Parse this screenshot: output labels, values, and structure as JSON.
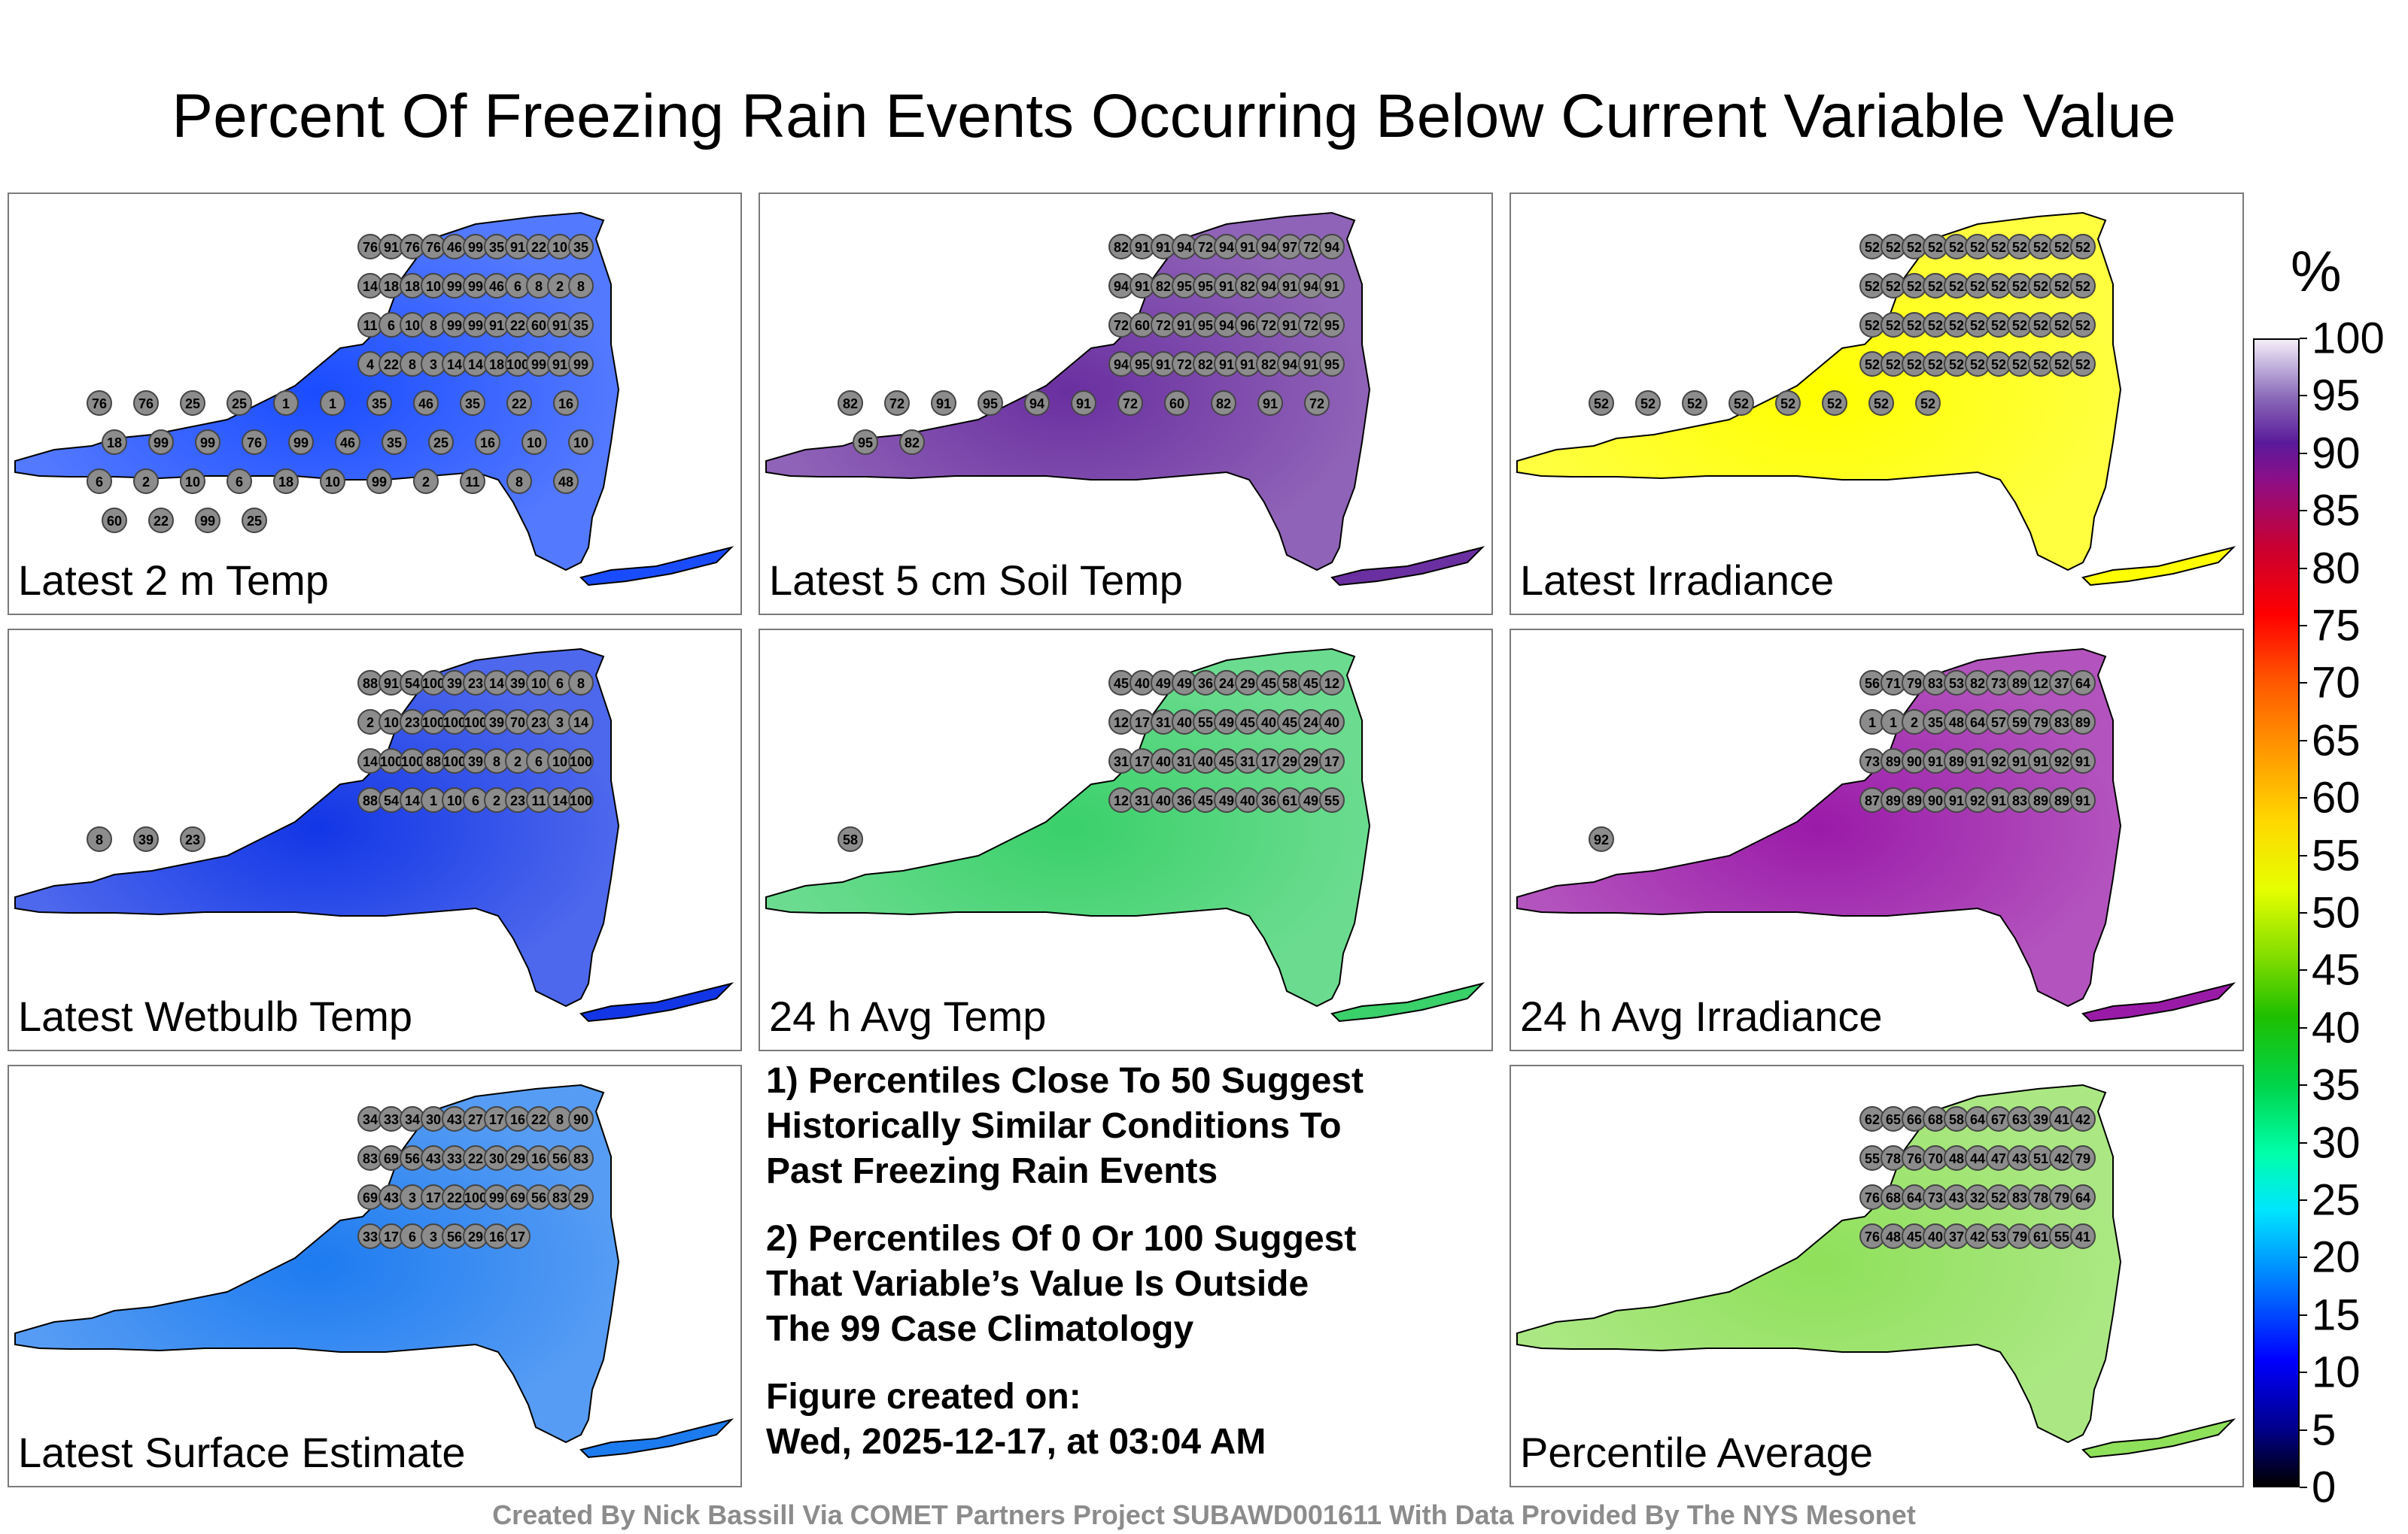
{
  "title": "Percent Of Freezing Rain Events Occurring Below Current Variable Value",
  "colorbar": {
    "unit": "%",
    "ticks": [
      "100",
      "95",
      "90",
      "85",
      "80",
      "75",
      "70",
      "65",
      "60",
      "55",
      "50",
      "45",
      "40",
      "35",
      "30",
      "25",
      "20",
      "15",
      "10",
      "5",
      "0"
    ]
  },
  "panels": [
    {
      "label": "Latest 2 m Temp",
      "tone": "#1a4cff"
    },
    {
      "label": "Latest 5 cm Soil Temp",
      "tone": "#6a2fa0"
    },
    {
      "label": "Latest Irradiance",
      "tone": "#ffff00"
    },
    {
      "label": "Latest Wetbulb Temp",
      "tone": "#1236e6"
    },
    {
      "label": "24 h Avg Temp",
      "tone": "#3ad06a"
    },
    {
      "label": "24 h Avg Irradiance",
      "tone": "#9a1aa8"
    },
    {
      "label": "Latest Surface Estimate",
      "tone": "#1d7bf0"
    },
    {
      "label": "Percentile Average",
      "tone": "#8fe05a"
    }
  ],
  "notes": {
    "note1": "1) Percentiles Close To 50 Suggest\nHistorically Similar Conditions To\nPast Freezing Rain Events",
    "note2": "2) Percentiles Of 0 Or 100 Suggest\nThat Variable’s Value Is Outside\nThe 99 Case Climatology",
    "created_label": "Figure created on:",
    "created_date": "Wed, 2025-12-17, at 03:04 AM"
  },
  "footer": "Created By Nick Bassill Via COMET Partners Project SUBAWD001611 With Data Provided By The NYS Mesonet",
  "chart_data": {
    "type": "map-panels",
    "title": "Percent Of Freezing Rain Events Occurring Below Current Variable Value",
    "colorbar_range": [
      0,
      100
    ],
    "colorbar_unit": "%",
    "panels": [
      {
        "name": "Latest 2 m Temp",
        "station_values": [
          76,
          91,
          76,
          76,
          46,
          99,
          35,
          91,
          22,
          10,
          35,
          14,
          18,
          18,
          10,
          99,
          99,
          46,
          6,
          8,
          2,
          8,
          11,
          6,
          10,
          8,
          99,
          99,
          91,
          22,
          60,
          91,
          35,
          4,
          22,
          8,
          3,
          14,
          14,
          18,
          100,
          99,
          91,
          99,
          76,
          76,
          25,
          25,
          1,
          1,
          35,
          46,
          35,
          22,
          16,
          18,
          99,
          99,
          76,
          99,
          46,
          35,
          25,
          16,
          10,
          10,
          6,
          2,
          10,
          6,
          18,
          10,
          99,
          2,
          11,
          8,
          48,
          60,
          22,
          99,
          25
        ]
      },
      {
        "name": "Latest 5 cm Soil Temp",
        "station_values": [
          82,
          91,
          91,
          94,
          72,
          94,
          91,
          94,
          97,
          72,
          94,
          94,
          91,
          82,
          95,
          95,
          91,
          82,
          94,
          91,
          94,
          91,
          72,
          60,
          72,
          91,
          95,
          94,
          96,
          72,
          91,
          72,
          95,
          94,
          95,
          91,
          72,
          82,
          91,
          91,
          82,
          94,
          91,
          95,
          82,
          72,
          91,
          95,
          94,
          91,
          72,
          60,
          82,
          91,
          72,
          95,
          82
        ]
      },
      {
        "name": "Latest Irradiance",
        "station_values": [
          52,
          52,
          52,
          52,
          52,
          52,
          52,
          52,
          52,
          52,
          52,
          52,
          52,
          52,
          52,
          52,
          52,
          52,
          52,
          52,
          52,
          52,
          52,
          52,
          52,
          52,
          52,
          52,
          52,
          52,
          52,
          52,
          52,
          52,
          52,
          52,
          52,
          52,
          52,
          52,
          52,
          52,
          52,
          52,
          52,
          52,
          52,
          52,
          52,
          52,
          52,
          52
        ]
      },
      {
        "name": "Latest Wetbulb Temp",
        "station_values": [
          88,
          91,
          54,
          100,
          39,
          23,
          14,
          39,
          10,
          6,
          8,
          2,
          10,
          23,
          100,
          100,
          100,
          39,
          70,
          23,
          3,
          14,
          14,
          100,
          100,
          88,
          100,
          39,
          8,
          2,
          6,
          10,
          100,
          88,
          54,
          14,
          1,
          10,
          6,
          2,
          23,
          11,
          14,
          100,
          8,
          39,
          23
        ]
      },
      {
        "name": "24 h Avg Temp",
        "station_values": [
          45,
          40,
          49,
          49,
          36,
          24,
          29,
          45,
          58,
          45,
          12,
          12,
          17,
          31,
          40,
          55,
          49,
          45,
          40,
          45,
          24,
          40,
          31,
          17,
          40,
          31,
          40,
          45,
          31,
          17,
          29,
          29,
          17,
          12,
          31,
          40,
          36,
          45,
          49,
          40,
          36,
          61,
          49,
          55,
          58
        ]
      },
      {
        "name": "24 h Avg Irradiance",
        "station_values": [
          56,
          71,
          79,
          83,
          53,
          82,
          73,
          89,
          12,
          37,
          64,
          1,
          1,
          2,
          35,
          48,
          64,
          57,
          59,
          79,
          83,
          89,
          73,
          89,
          90,
          91,
          89,
          91,
          92,
          91,
          91,
          92,
          91,
          87,
          89,
          89,
          90,
          91,
          92,
          91,
          83,
          89,
          89,
          91,
          92
        ]
      },
      {
        "name": "Latest Surface Estimate",
        "station_values": [
          34,
          33,
          34,
          30,
          43,
          27,
          17,
          16,
          22,
          8,
          90,
          83,
          69,
          56,
          43,
          33,
          22,
          30,
          29,
          16,
          56,
          83,
          69,
          43,
          3,
          17,
          22,
          100,
          99,
          69,
          56,
          83,
          29,
          33,
          17,
          6,
          3,
          56,
          29,
          16,
          17
        ]
      },
      {
        "name": "Percentile Average",
        "station_values": [
          62,
          65,
          66,
          68,
          58,
          64,
          67,
          63,
          39,
          41,
          42,
          55,
          78,
          76,
          70,
          48,
          44,
          47,
          43,
          51,
          42,
          79,
          76,
          68,
          64,
          73,
          43,
          32,
          52,
          83,
          78,
          79,
          64,
          76,
          48,
          45,
          40,
          37,
          42,
          53,
          79,
          61,
          55,
          41
        ]
      }
    ]
  }
}
